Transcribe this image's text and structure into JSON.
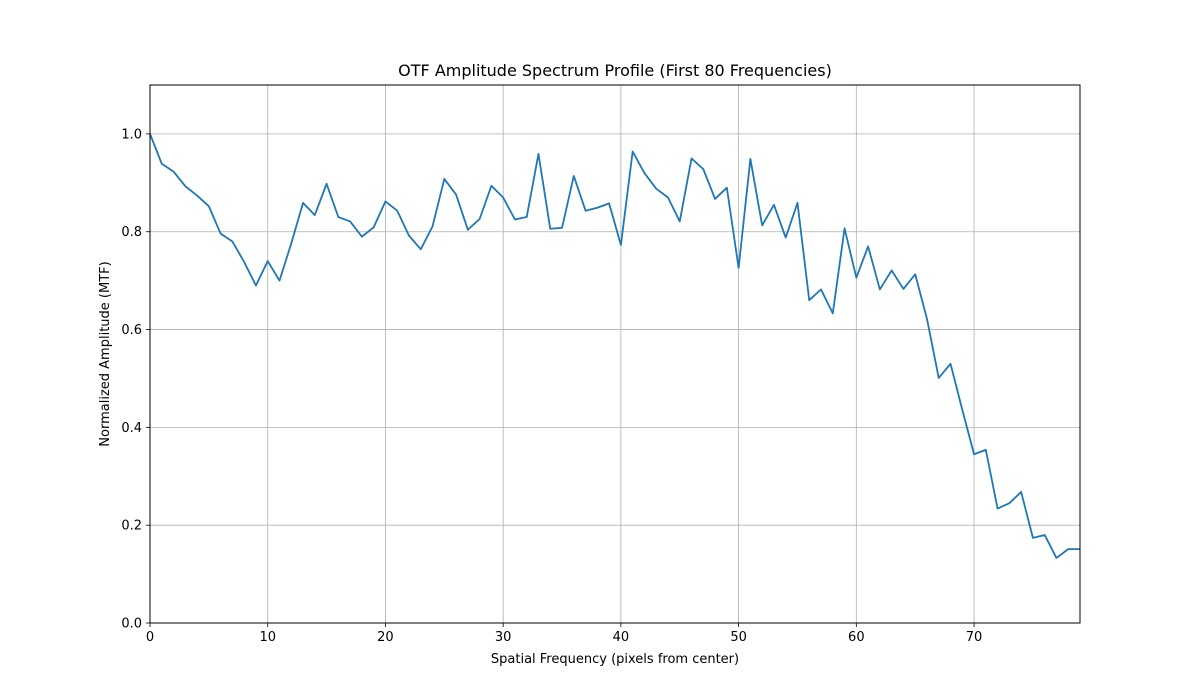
{
  "chart_data": {
    "type": "line",
    "title": "OTF Amplitude Spectrum Profile (First 80 Frequencies)",
    "xlabel": "Spatial Frequency (pixels from center)",
    "ylabel": "Normalized Amplitude (MTF)",
    "xlim": [
      0,
      79
    ],
    "ylim": [
      0,
      1.1
    ],
    "xticks": [
      0,
      10,
      20,
      30,
      40,
      50,
      60,
      70
    ],
    "xtick_labels": [
      "0",
      "10",
      "20",
      "30",
      "40",
      "50",
      "60",
      "70"
    ],
    "yticks": [
      0.0,
      0.2,
      0.4,
      0.6,
      0.8,
      1.0
    ],
    "ytick_labels": [
      "0.0",
      "0.2",
      "0.4",
      "0.6",
      "0.8",
      "1.0"
    ],
    "grid": true,
    "series": [
      {
        "color": "#1f77b4",
        "x": [
          0,
          1,
          2,
          3,
          4,
          5,
          6,
          7,
          8,
          9,
          10,
          11,
          12,
          13,
          14,
          15,
          16,
          17,
          18,
          19,
          20,
          21,
          22,
          23,
          24,
          25,
          26,
          27,
          28,
          29,
          30,
          31,
          32,
          33,
          34,
          35,
          36,
          37,
          38,
          39,
          40,
          41,
          42,
          43,
          44,
          45,
          46,
          47,
          48,
          49,
          50,
          51,
          52,
          53,
          54,
          55,
          56,
          57,
          58,
          59,
          60,
          61,
          62,
          63,
          64,
          65,
          66,
          67,
          68,
          69,
          70,
          71,
          72,
          73,
          74,
          75,
          76,
          77,
          78,
          79
        ],
        "values": [
          1.0,
          0.939,
          0.923,
          0.893,
          0.874,
          0.852,
          0.796,
          0.78,
          0.738,
          0.69,
          0.74,
          0.7,
          0.776,
          0.859,
          0.834,
          0.898,
          0.83,
          0.821,
          0.79,
          0.809,
          0.862,
          0.843,
          0.792,
          0.764,
          0.811,
          0.908,
          0.876,
          0.804,
          0.826,
          0.894,
          0.87,
          0.825,
          0.83,
          0.959,
          0.806,
          0.808,
          0.914,
          0.843,
          0.849,
          0.858,
          0.773,
          0.964,
          0.92,
          0.888,
          0.87,
          0.821,
          0.95,
          0.928,
          0.867,
          0.89,
          0.726,
          0.949,
          0.813,
          0.855,
          0.788,
          0.859,
          0.66,
          0.682,
          0.633,
          0.807,
          0.706,
          0.77,
          0.682,
          0.721,
          0.683,
          0.713,
          0.622,
          0.501,
          0.53,
          0.436,
          0.345,
          0.354,
          0.234,
          0.245,
          0.268,
          0.174,
          0.18,
          0.133,
          0.151,
          0.151
        ]
      }
    ]
  }
}
